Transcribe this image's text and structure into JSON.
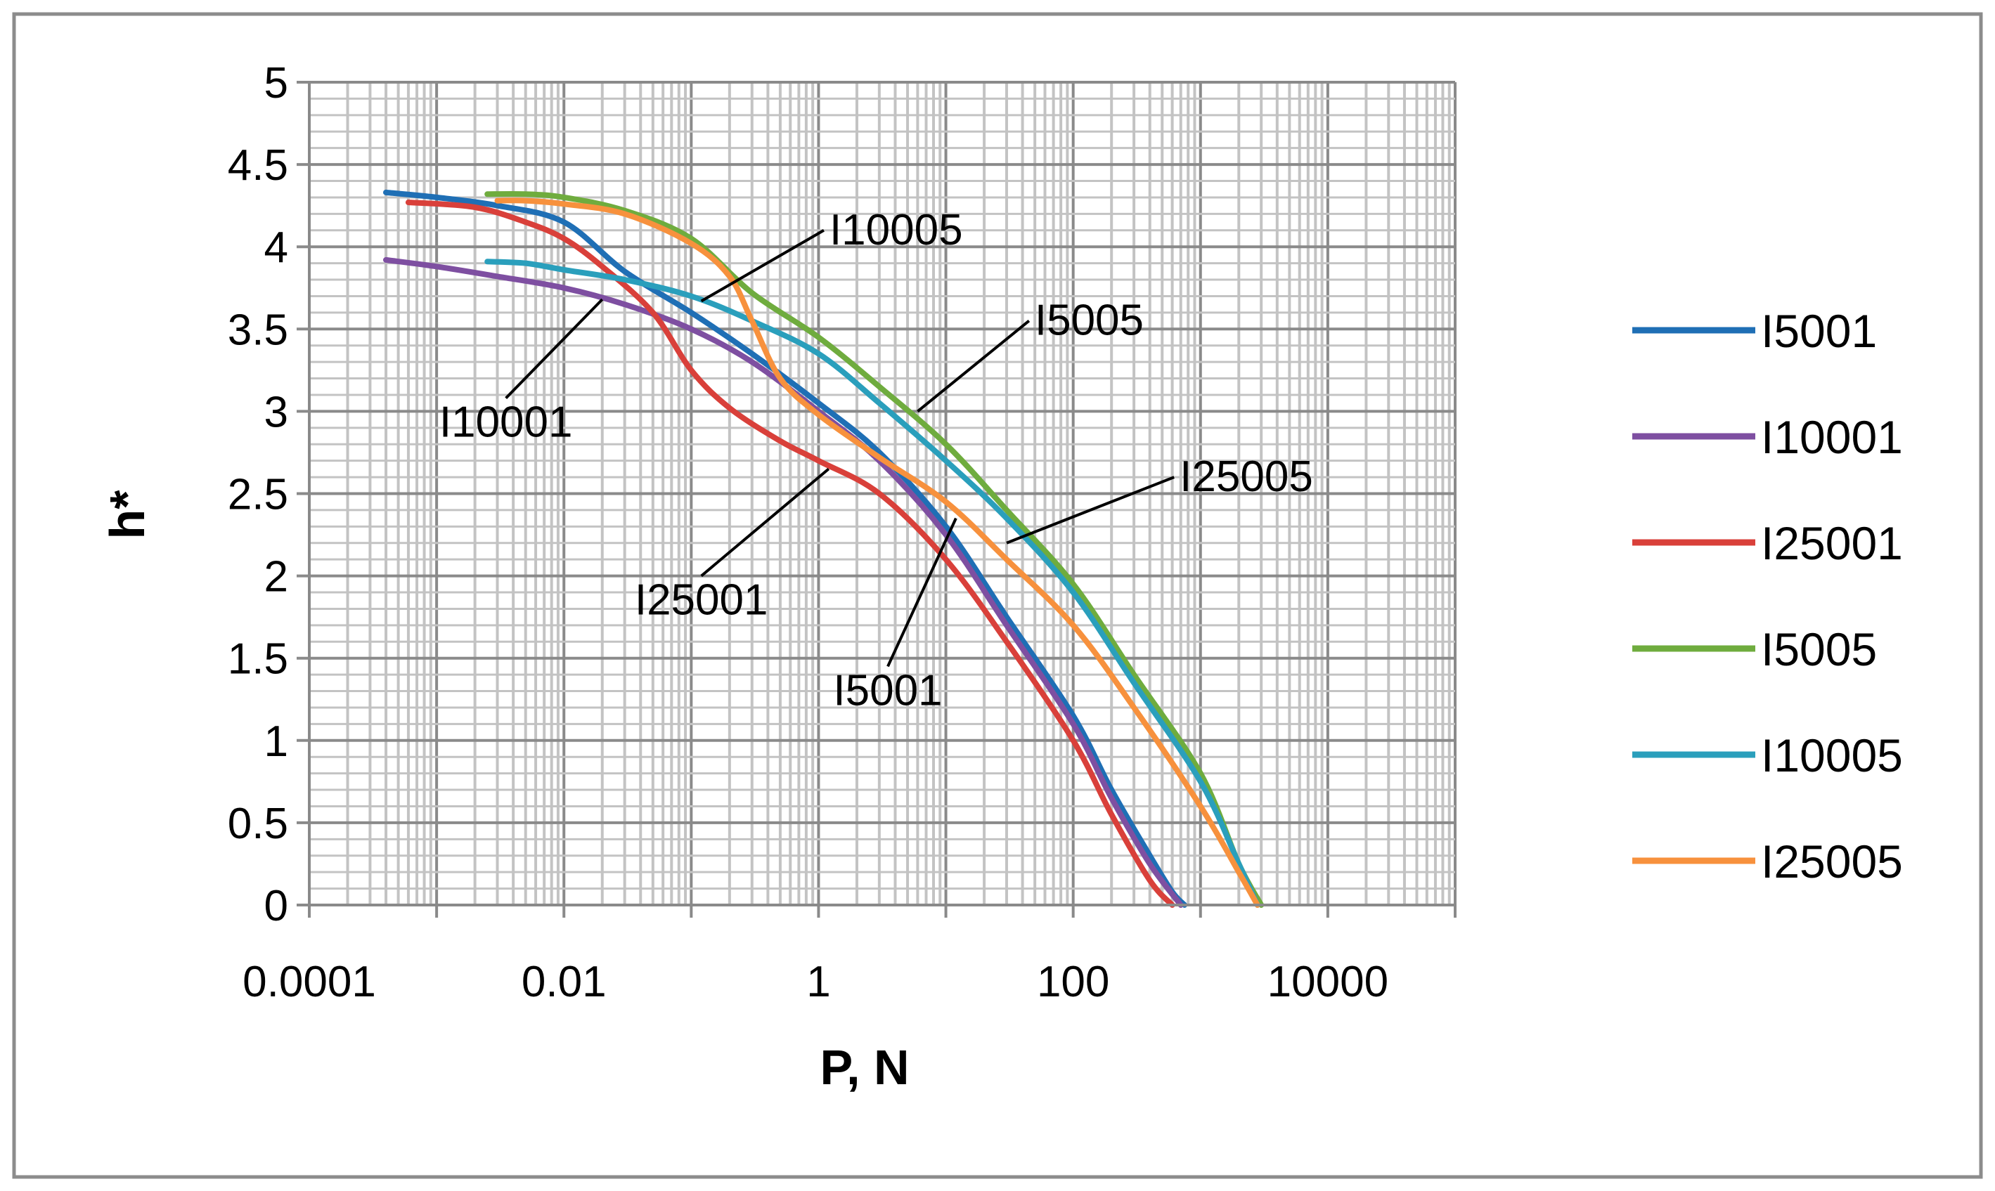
{
  "chart_data": {
    "type": "line",
    "title": "",
    "xlabel": "P, N",
    "ylabel": "h*",
    "xscale": "log",
    "xlim": [
      0.0001,
      100000
    ],
    "ylim": [
      0,
      5
    ],
    "x_ticks": [
      0.0001,
      0.01,
      1,
      100,
      10000
    ],
    "x_tick_labels": [
      "0.0001",
      "0.01",
      "1",
      "100",
      "10000"
    ],
    "y_ticks": [
      0,
      0.5,
      1,
      1.5,
      2,
      2.5,
      3,
      3.5,
      4,
      4.5,
      5
    ],
    "y_tick_labels": [
      "0",
      "0.5",
      "1",
      "1.5",
      "2",
      "2.5",
      "3",
      "3.5",
      "4",
      "4.5",
      "5"
    ],
    "grid": true,
    "legend_position": "right",
    "series": [
      {
        "name": "I5001",
        "color": "#1F6FB5",
        "x": [
          0.0004,
          0.001,
          0.003,
          0.01,
          0.03,
          0.1,
          0.3,
          1,
          3,
          10,
          30,
          100,
          200,
          400,
          600,
          750
        ],
        "y": [
          4.33,
          4.3,
          4.25,
          4.15,
          3.85,
          3.6,
          3.35,
          3.05,
          2.75,
          2.3,
          1.75,
          1.15,
          0.7,
          0.3,
          0.08,
          0
        ]
      },
      {
        "name": "I10001",
        "color": "#7E4FA1",
        "x": [
          0.0004,
          0.001,
          0.003,
          0.01,
          0.03,
          0.1,
          0.3,
          1,
          3,
          10,
          30,
          100,
          200,
          400,
          700
        ],
        "y": [
          3.92,
          3.88,
          3.82,
          3.75,
          3.65,
          3.5,
          3.3,
          3.0,
          2.7,
          2.25,
          1.7,
          1.1,
          0.65,
          0.25,
          0
        ]
      },
      {
        "name": "I25001",
        "color": "#D9403A",
        "x": [
          0.0006,
          0.002,
          0.005,
          0.01,
          0.02,
          0.05,
          0.1,
          0.2,
          0.5,
          1,
          3,
          10,
          30,
          100,
          200,
          400,
          600
        ],
        "y": [
          4.27,
          4.24,
          4.15,
          4.05,
          3.88,
          3.6,
          3.25,
          3.02,
          2.82,
          2.7,
          2.5,
          2.1,
          1.6,
          1.0,
          0.55,
          0.15,
          0
        ]
      },
      {
        "name": "I5005",
        "color": "#6FAC3E",
        "x": [
          0.0025,
          0.005,
          0.01,
          0.03,
          0.1,
          0.3,
          1,
          3,
          10,
          30,
          100,
          300,
          1000,
          2000,
          3000
        ],
        "y": [
          4.32,
          4.32,
          4.3,
          4.22,
          4.05,
          3.72,
          3.45,
          3.15,
          2.8,
          2.4,
          1.95,
          1.4,
          0.8,
          0.25,
          0
        ]
      },
      {
        "name": "I10005",
        "color": "#2A9FBC",
        "x": [
          0.0025,
          0.005,
          0.01,
          0.03,
          0.1,
          0.3,
          1,
          3,
          10,
          30,
          100,
          300,
          1000,
          2000,
          2800
        ],
        "y": [
          3.91,
          3.9,
          3.86,
          3.8,
          3.7,
          3.55,
          3.35,
          3.05,
          2.7,
          2.35,
          1.9,
          1.35,
          0.75,
          0.25,
          0
        ]
      },
      {
        "name": "I25005",
        "color": "#F7913D",
        "x": [
          0.003,
          0.005,
          0.01,
          0.03,
          0.1,
          0.2,
          0.3,
          0.5,
          1,
          3,
          10,
          30,
          100,
          300,
          1000,
          2000,
          2800
        ],
        "y": [
          4.28,
          4.28,
          4.26,
          4.2,
          4.02,
          3.82,
          3.55,
          3.2,
          2.98,
          2.72,
          2.45,
          2.1,
          1.7,
          1.2,
          0.6,
          0.2,
          0
        ]
      }
    ],
    "annotations": [
      {
        "text": "I10005",
        "series": "I10005",
        "point": [
          0.12,
          3.67
        ],
        "text_pos": [
          1.1,
          4.1
        ]
      },
      {
        "text": "I10001",
        "series": "I10001",
        "point": [
          0.02,
          3.68
        ],
        "text_pos": [
          0.0035,
          3.08
        ]
      },
      {
        "text": "I5005",
        "series": "I5005",
        "point": [
          6,
          3.0
        ],
        "text_pos": [
          45,
          3.55
        ]
      },
      {
        "text": "I25005",
        "series": "I25005",
        "point": [
          30,
          2.2
        ],
        "text_pos": [
          620,
          2.6
        ]
      },
      {
        "text": "I25001",
        "series": "I25001",
        "point": [
          1.2,
          2.65
        ],
        "text_pos": [
          0.12,
          2.0
        ]
      },
      {
        "text": "I5001",
        "series": "I5001",
        "point": [
          12,
          2.35
        ],
        "text_pos": [
          3.5,
          1.45
        ]
      }
    ]
  }
}
